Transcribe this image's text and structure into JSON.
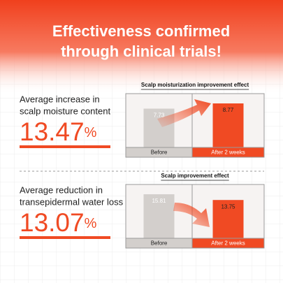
{
  "header": {
    "title_lines": [
      "Effectiveness confirmed",
      "through clinical trials!"
    ]
  },
  "sections": [
    {
      "label_lines": [
        "Average increase in",
        "scalp moisture content"
      ],
      "stat": "13.47",
      "unit": "%",
      "chart": {
        "type": "bar",
        "title": "Scalp moisturization improvement effect",
        "categories": [
          "Before",
          "After 2 weeks"
        ],
        "values": [
          7.73,
          8.77
        ],
        "colors": [
          "#d3cfcc",
          "#f04a23"
        ]
      }
    },
    {
      "label_lines": [
        "Average reduction in",
        "transepidermal water loss"
      ],
      "stat": "13.07",
      "unit": "%",
      "chart": {
        "type": "bar",
        "title": "Scalp improvement effect",
        "categories": [
          "Before",
          "After 2 weeks"
        ],
        "values": [
          15.81,
          13.75
        ],
        "colors": [
          "#d3cfcc",
          "#f04a23"
        ]
      }
    }
  ]
}
